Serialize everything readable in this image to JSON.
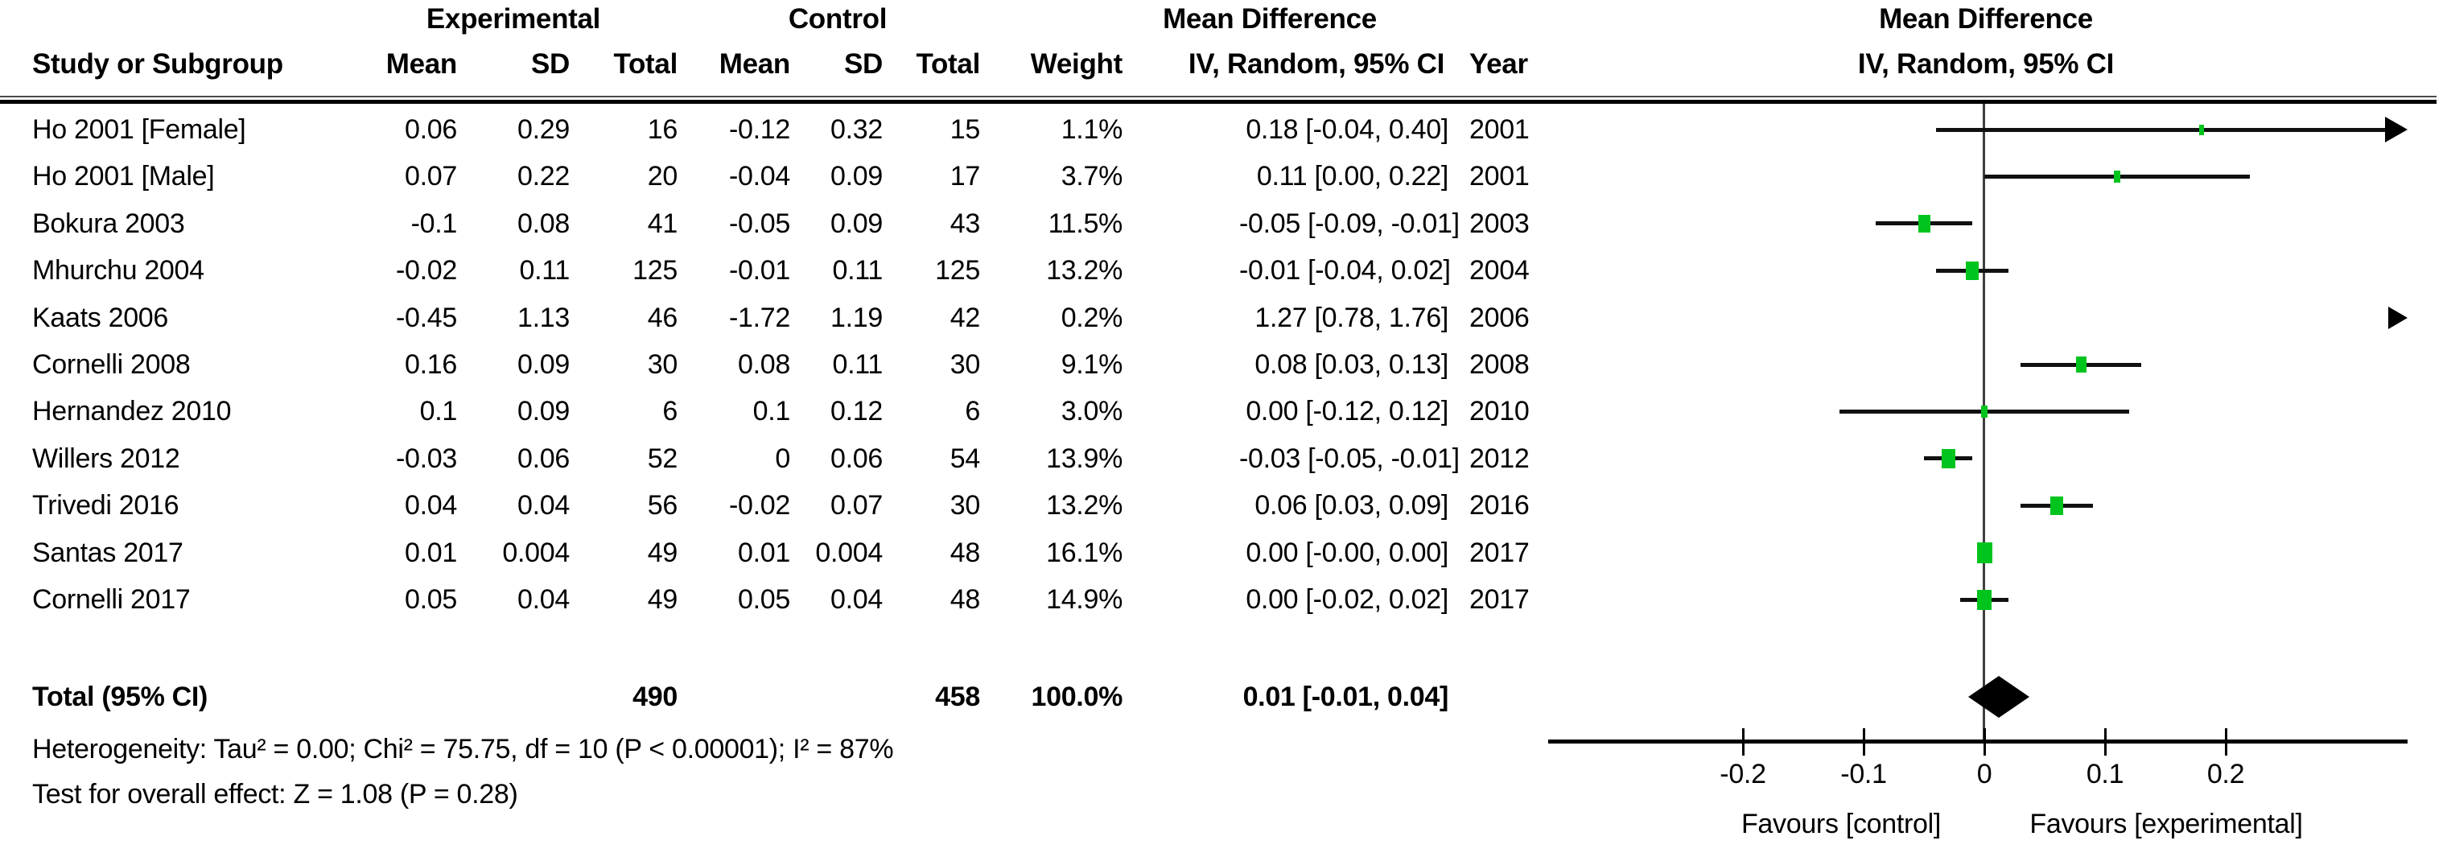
{
  "figure": {
    "group_headers": {
      "experimental": "Experimental",
      "control": "Control",
      "md_left": "Mean Difference",
      "md_right": "Mean Difference"
    },
    "column_headers": {
      "study": "Study or Subgroup",
      "mean_e": "Mean",
      "sd_e": "SD",
      "total_e": "Total",
      "mean_c": "Mean",
      "sd_c": "SD",
      "total_c": "Total",
      "weight": "Weight",
      "ci": "IV, Random, 95% CI",
      "year": "Year",
      "ci_right": "IV, Random, 95% CI"
    },
    "total_row": {
      "label": "Total (95% CI)",
      "total_e": "490",
      "total_c": "458",
      "weight": "100.0%",
      "ci_text": "0.01 [-0.01, 0.04]"
    },
    "footnotes": {
      "heterogeneity": "Heterogeneity: Tau² = 0.00; Chi² = 75.75, df = 10 (P < 0.00001); I² = 87%",
      "overall_effect": "Test for overall effect: Z = 1.08 (P = 0.28)"
    },
    "favours": {
      "left": "Favours [control]",
      "right": "Favours [experimental]"
    },
    "colors": {
      "marker_green": "#00c41e",
      "line_black": "#111111"
    }
  },
  "chart_data": {
    "type": "forest",
    "title": "Mean Difference IV, Random, 95% CI",
    "x_ticks": [
      -0.2,
      -0.1,
      0,
      0.1,
      0.2
    ],
    "x_tick_labels": [
      "-0.2",
      "-0.1",
      "0",
      "0.1",
      "0.2"
    ],
    "xlim": [
      -0.36,
      0.35
    ],
    "studies": [
      {
        "label": "Ho 2001 [Female]",
        "mean_e": "0.06",
        "sd_e": "0.29",
        "total_e": "16",
        "mean_c": "-0.12",
        "sd_c": "0.32",
        "total_c": "15",
        "weight": "1.1%",
        "ci_text": "0.18 [-0.04, 0.40]",
        "year": "2001",
        "md": 0.18,
        "ci_low": -0.04,
        "ci_high": 0.4,
        "weight_pct": 1.1
      },
      {
        "label": "Ho 2001 [Male]",
        "mean_e": "0.07",
        "sd_e": "0.22",
        "total_e": "20",
        "mean_c": "-0.04",
        "sd_c": "0.09",
        "total_c": "17",
        "weight": "3.7%",
        "ci_text": "0.11 [0.00, 0.22]",
        "year": "2001",
        "md": 0.11,
        "ci_low": 0.0,
        "ci_high": 0.22,
        "weight_pct": 3.7
      },
      {
        "label": "Bokura 2003",
        "mean_e": "-0.1",
        "sd_e": "0.08",
        "total_e": "41",
        "mean_c": "-0.05",
        "sd_c": "0.09",
        "total_c": "43",
        "weight": "11.5%",
        "ci_text": "-0.05 [-0.09, -0.01]",
        "year": "2003",
        "md": -0.05,
        "ci_low": -0.09,
        "ci_high": -0.01,
        "weight_pct": 11.5
      },
      {
        "label": "Mhurchu 2004",
        "mean_e": "-0.02",
        "sd_e": "0.11",
        "total_e": "125",
        "mean_c": "-0.01",
        "sd_c": "0.11",
        "total_c": "125",
        "weight": "13.2%",
        "ci_text": "-0.01 [-0.04, 0.02]",
        "year": "2004",
        "md": -0.01,
        "ci_low": -0.04,
        "ci_high": 0.02,
        "weight_pct": 13.2
      },
      {
        "label": "Kaats 2006",
        "mean_e": "-0.45",
        "sd_e": "1.13",
        "total_e": "46",
        "mean_c": "-1.72",
        "sd_c": "1.19",
        "total_c": "42",
        "weight": "0.2%",
        "ci_text": "1.27 [0.78, 1.76]",
        "year": "2006",
        "md": 1.27,
        "ci_low": 0.78,
        "ci_high": 1.76,
        "weight_pct": 0.2
      },
      {
        "label": "Cornelli 2008",
        "mean_e": "0.16",
        "sd_e": "0.09",
        "total_e": "30",
        "mean_c": "0.08",
        "sd_c": "0.11",
        "total_c": "30",
        "weight": "9.1%",
        "ci_text": "0.08 [0.03, 0.13]",
        "year": "2008",
        "md": 0.08,
        "ci_low": 0.03,
        "ci_high": 0.13,
        "weight_pct": 9.1
      },
      {
        "label": "Hernandez 2010",
        "mean_e": "0.1",
        "sd_e": "0.09",
        "total_e": "6",
        "mean_c": "0.1",
        "sd_c": "0.12",
        "total_c": "6",
        "weight": "3.0%",
        "ci_text": "0.00 [-0.12, 0.12]",
        "year": "2010",
        "md": 0.0,
        "ci_low": -0.12,
        "ci_high": 0.12,
        "weight_pct": 3.0
      },
      {
        "label": "Willers 2012",
        "mean_e": "-0.03",
        "sd_e": "0.06",
        "total_e": "52",
        "mean_c": "0",
        "sd_c": "0.06",
        "total_c": "54",
        "weight": "13.9%",
        "ci_text": "-0.03 [-0.05, -0.01]",
        "year": "2012",
        "md": -0.03,
        "ci_low": -0.05,
        "ci_high": -0.01,
        "weight_pct": 13.9
      },
      {
        "label": "Trivedi 2016",
        "mean_e": "0.04",
        "sd_e": "0.04",
        "total_e": "56",
        "mean_c": "-0.02",
        "sd_c": "0.07",
        "total_c": "30",
        "weight": "13.2%",
        "ci_text": "0.06 [0.03, 0.09]",
        "year": "2016",
        "md": 0.06,
        "ci_low": 0.03,
        "ci_high": 0.09,
        "weight_pct": 13.2
      },
      {
        "label": "Santas 2017",
        "mean_e": "0.01",
        "sd_e": "0.004",
        "total_e": "49",
        "mean_c": "0.01",
        "sd_c": "0.004",
        "total_c": "48",
        "weight": "16.1%",
        "ci_text": "0.00 [-0.00, 0.00]",
        "year": "2017",
        "md": 0.0,
        "ci_low": 0.0,
        "ci_high": 0.0,
        "weight_pct": 16.1
      },
      {
        "label": "Cornelli 2017",
        "mean_e": "0.05",
        "sd_e": "0.04",
        "total_e": "49",
        "mean_c": "0.05",
        "sd_c": "0.04",
        "total_c": "48",
        "weight": "14.9%",
        "ci_text": "0.00 [-0.02, 0.02]",
        "year": "2017",
        "md": 0.0,
        "ci_low": -0.02,
        "ci_high": 0.02,
        "weight_pct": 14.9
      }
    ],
    "total": {
      "md": 0.01,
      "ci_low": -0.01,
      "ci_high": 0.04
    }
  }
}
